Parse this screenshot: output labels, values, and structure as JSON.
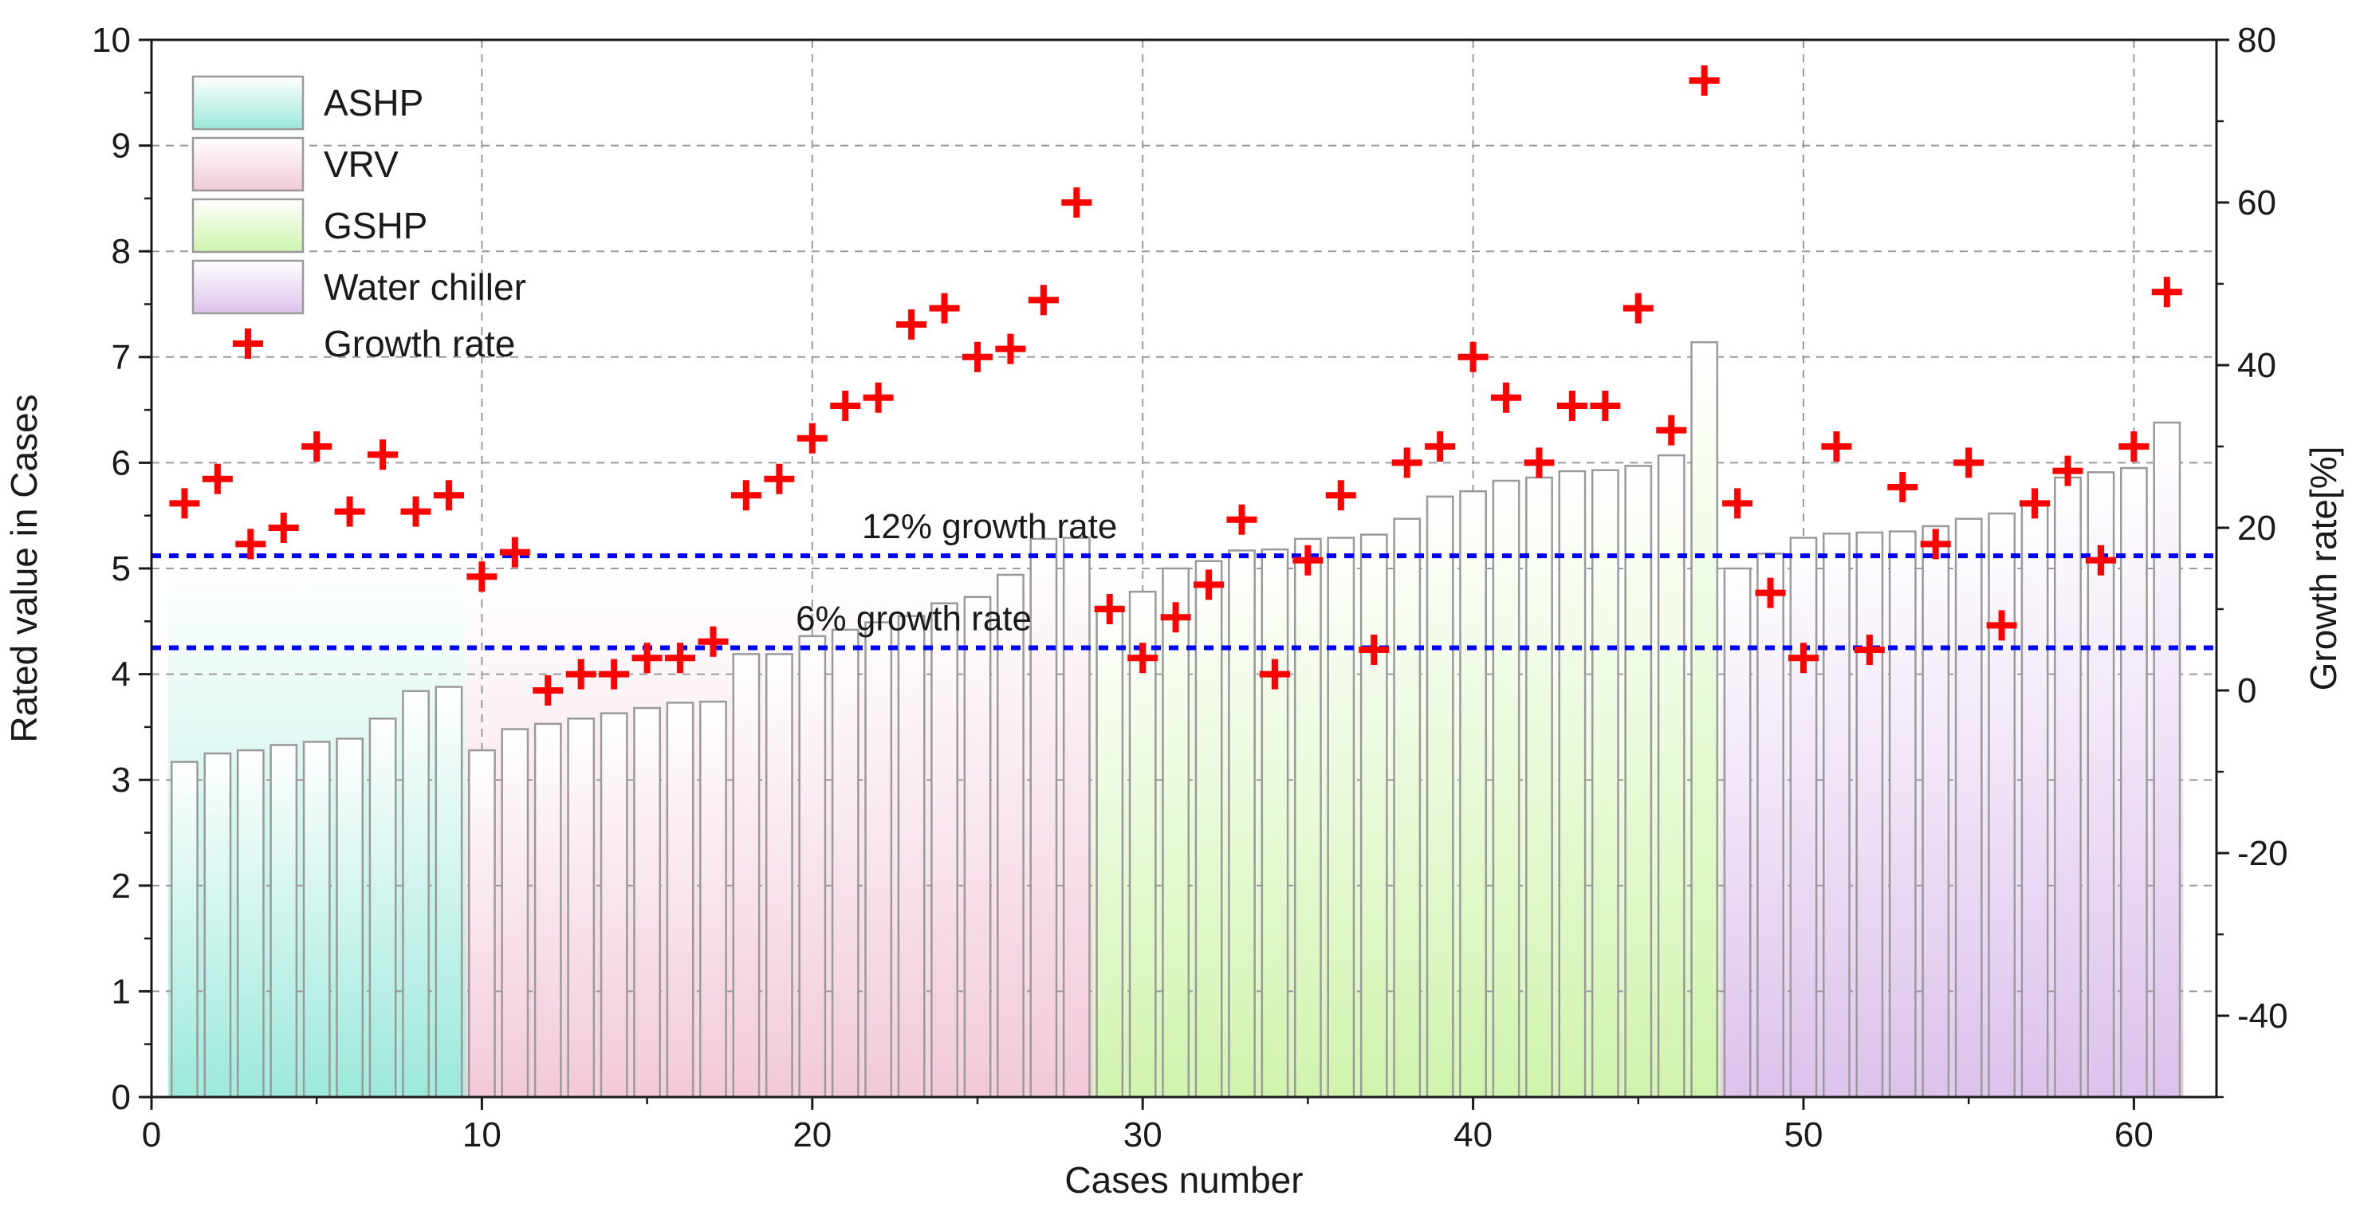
{
  "chart_data": {
    "type": "bar",
    "title": "",
    "xlabel": "Cases number",
    "ylabel": "Rated value in Cases",
    "y2label": "Growth rate[%]",
    "xlim": [
      0,
      62.5
    ],
    "ylim": [
      0,
      10
    ],
    "y2lim": [
      -50,
      80
    ],
    "xticks": [
      0,
      10,
      20,
      30,
      40,
      50,
      60
    ],
    "yticks": [
      0,
      1,
      2,
      3,
      4,
      5,
      6,
      7,
      8,
      9,
      10
    ],
    "y2ticks": [
      -40,
      -20,
      0,
      20,
      40,
      60,
      80
    ],
    "grid": true,
    "legend_position": "top-left",
    "groups": [
      {
        "name": "ASHP",
        "color": "#c4f2ea",
        "color_bottom": "#9ce9da",
        "cases": [
          1,
          9
        ],
        "values": [
          3.17,
          3.25,
          3.28,
          3.33,
          3.36,
          3.39,
          3.58,
          3.84,
          3.88
        ]
      },
      {
        "name": "VRV",
        "color": "#fbeef3",
        "color_bottom": "#f2c9d9",
        "cases": [
          10,
          28
        ],
        "values": [
          3.28,
          3.48,
          3.53,
          3.58,
          3.63,
          3.68,
          3.73,
          3.74,
          4.19,
          4.19,
          4.36,
          4.42,
          4.49,
          4.55,
          4.67,
          4.73,
          4.94,
          5.28,
          5.29
        ]
      },
      {
        "name": "GSHP",
        "color": "#e6fbcf",
        "color_bottom": "#d0f4ad",
        "cases": [
          29,
          47
        ],
        "values": [
          4.64,
          4.78,
          5.0,
          5.07,
          5.17,
          5.18,
          5.28,
          5.29,
          5.32,
          5.47,
          5.68,
          5.73,
          5.83,
          5.86,
          5.92,
          5.93,
          5.97,
          6.07,
          7.14
        ]
      },
      {
        "name": "Water chiller",
        "color": "#efdff5",
        "color_bottom": "#ddc2ec",
        "cases": [
          48,
          61
        ],
        "values": [
          5.0,
          5.14,
          5.29,
          5.33,
          5.34,
          5.35,
          5.4,
          5.47,
          5.52,
          5.63,
          5.86,
          5.91,
          5.95,
          6.38
        ]
      }
    ],
    "growth_rate": {
      "name": "Growth rate",
      "color": "#ff0000",
      "values": [
        23,
        26,
        18,
        20,
        30,
        22,
        29,
        22,
        24,
        14,
        17,
        0,
        2,
        2,
        4,
        4,
        6,
        24,
        26,
        31,
        35,
        36,
        45,
        47,
        41,
        42,
        48,
        60,
        10,
        4,
        9,
        13,
        21,
        2,
        16,
        24,
        5,
        28,
        30,
        41,
        36,
        28,
        35,
        35,
        47,
        32,
        75,
        23,
        12,
        4,
        30,
        5,
        25,
        18,
        28,
        8,
        23,
        27,
        16,
        30,
        49
      ]
    },
    "reference_lines": [
      {
        "label": "12% growth rate",
        "y": 5.12,
        "color": "#0000ff"
      },
      {
        "label": "6% growth rate",
        "y": 4.25,
        "color": "#0000ff"
      }
    ]
  }
}
